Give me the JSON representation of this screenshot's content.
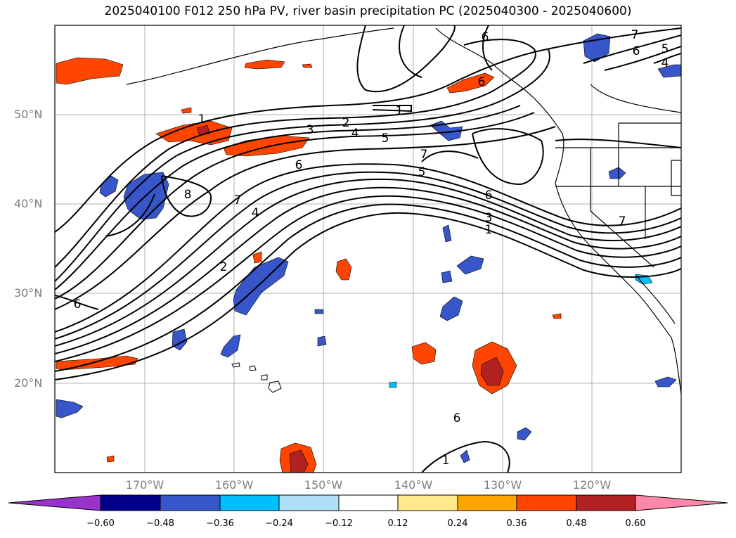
{
  "title": "2025040100 F012 250 hPa PV, river basin precipitation PC (2025040300 - 2025040600)",
  "lat_labels": [
    "50°N",
    "40°N",
    "30°N",
    "20°N"
  ],
  "lon_labels": [
    "170°W",
    "160°W",
    "150°W",
    "140°W",
    "130°W",
    "120°W"
  ],
  "contour_labels": [
    "1",
    "2",
    "3",
    "4",
    "5",
    "6",
    "7",
    "8",
    "6",
    "5",
    "6",
    "7",
    "6",
    "3",
    "1",
    "1",
    "2",
    "4",
    "6",
    "7",
    "4",
    "5",
    "6",
    "7",
    "1",
    "6"
  ],
  "colorbar": {
    "ticks": [
      "−0.60",
      "−0.48",
      "−0.36",
      "−0.24",
      "−0.12",
      "0.12",
      "0.24",
      "0.36",
      "0.48",
      "0.60"
    ],
    "colors": [
      "#9932cc",
      "#00008b",
      "#3656c9",
      "#00bfff",
      "#aee0f8",
      "#ffffff",
      "#ffe98a",
      "#ffa500",
      "#ff4500",
      "#b22222",
      "#ff88aa"
    ]
  }
}
